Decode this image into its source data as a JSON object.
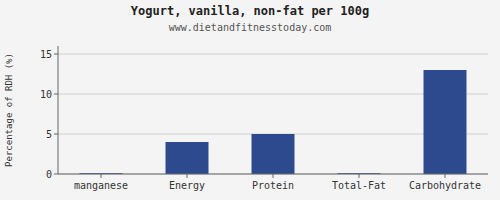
{
  "chart_data": {
    "type": "bar",
    "title": "Yogurt, vanilla, non-fat per 100g",
    "subtitle": "www.dietandfitnesstoday.com",
    "categories": [
      "manganese",
      "Energy",
      "Protein",
      "Total-Fat",
      "Carbohydrate"
    ],
    "values": [
      0.1,
      4.0,
      5.0,
      0.1,
      13.0
    ],
    "color": "#2e4a8e",
    "ylabel": "Percentage of RDH (%)",
    "ylim": [
      0,
      16
    ],
    "yticks": [
      0,
      5,
      10,
      15
    ],
    "grid": true
  }
}
